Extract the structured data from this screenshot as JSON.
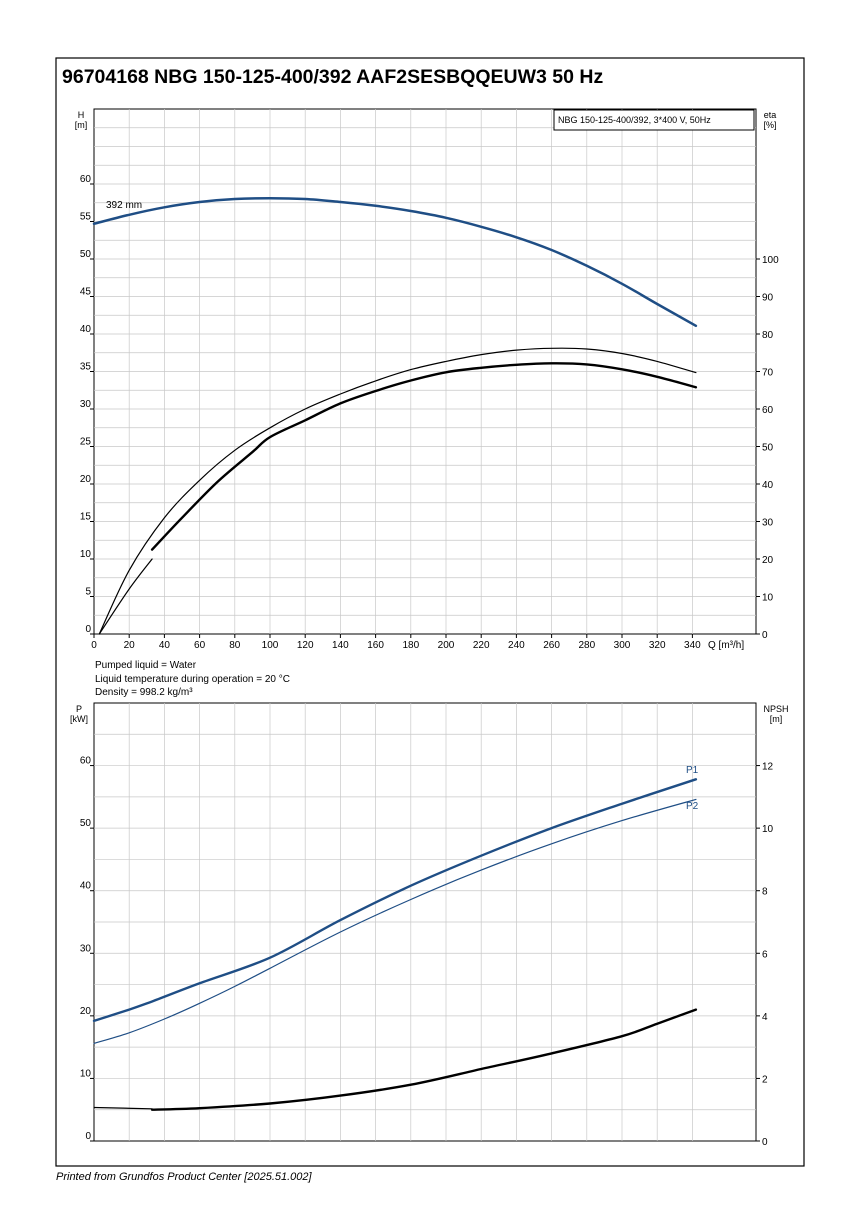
{
  "title": "96704168 NBG 150-125-400/392 AAF2SESBQQEUW3 50 Hz",
  "footer": "Printed from Grundfos Product Center [2025.51.002]",
  "colors": {
    "blue": "#1f4e85",
    "black": "#000000",
    "grid": "#c8c8c8"
  },
  "chart_data": [
    {
      "type": "line",
      "panel": "head-efficiency",
      "legend_box": "NBG 150-125-400/392, 3*400 V, 50Hz",
      "legend_position": "top-right",
      "grid": true,
      "xlabel": "Q [m³/h]",
      "x_ticks": [
        "0",
        "20",
        "40",
        "60",
        "80",
        "100",
        "120",
        "140",
        "160",
        "180",
        "200",
        "220",
        "240",
        "260",
        "280",
        "300",
        "320",
        "340"
      ],
      "xlim": [
        0,
        370
      ],
      "y_left": {
        "label_line1": "H",
        "label_line2": "[m]",
        "ticks": [
          "0",
          "5",
          "10",
          "15",
          "20",
          "25",
          "30",
          "35",
          "40",
          "45",
          "50",
          "55",
          "60"
        ],
        "lim": [
          0,
          70
        ]
      },
      "y_right": {
        "label_line1": "eta",
        "label_line2": "[%]",
        "ticks": [
          "0",
          "10",
          "20",
          "30",
          "40",
          "50",
          "60",
          "70",
          "80",
          "90",
          "100"
        ],
        "lim": [
          0,
          140
        ]
      },
      "curve_annotation": "392 mm",
      "series": [
        {
          "axis": "left",
          "color": "#1f4e85",
          "width": 2.5,
          "x": [
            0,
            20,
            40,
            60,
            80,
            100,
            120,
            140,
            160,
            180,
            200,
            220,
            240,
            260,
            280,
            300,
            320,
            342
          ],
          "y": [
            54.7,
            55.9,
            56.9,
            57.6,
            58.0,
            58.1,
            58.0,
            57.6,
            57.1,
            56.4,
            55.5,
            54.3,
            52.9,
            51.2,
            49.1,
            46.7,
            44.0,
            41.1
          ]
        },
        {
          "axis": "right",
          "color": "#000000",
          "width": 1.2,
          "x": [
            3,
            20,
            40,
            60,
            80,
            100,
            120,
            140,
            160,
            180,
            200,
            220,
            240,
            260,
            280,
            300,
            320,
            342
          ],
          "y": [
            0,
            17,
            31,
            41,
            49,
            55,
            60,
            64,
            67.5,
            70.5,
            72.7,
            74.5,
            75.7,
            76.2,
            76.0,
            74.8,
            72.7,
            69.7
          ]
        },
        {
          "axis": "right",
          "color": "#000000",
          "width": 2.4,
          "x": [
            33,
            50,
            70,
            90,
            100,
            120,
            140,
            160,
            180,
            200,
            220,
            240,
            260,
            280,
            300,
            320,
            342
          ],
          "y": [
            22.5,
            31,
            40.5,
            48.5,
            52.5,
            57,
            61.5,
            64.8,
            67.6,
            69.8,
            71,
            71.8,
            72.2,
            71.9,
            70.6,
            68.6,
            65.8
          ]
        },
        {
          "axis": "right",
          "color": "#000000",
          "width": 1.2,
          "x": [
            3,
            20,
            33
          ],
          "y": [
            0,
            12,
            20
          ]
        }
      ]
    },
    {
      "type": "line",
      "panel": "power-npsh",
      "grid": true,
      "notes": [
        "Pumped liquid = Water",
        "Liquid temperature during operation = 20 °C",
        "Density = 998.2 kg/m³"
      ],
      "y_left": {
        "label_line1": "P",
        "label_line2": "[kW]",
        "ticks": [
          "0",
          "10",
          "20",
          "30",
          "40",
          "50",
          "60"
        ],
        "lim": [
          0,
          70
        ]
      },
      "y_right": {
        "label_line1": "NPSH",
        "label_line2": "[m]",
        "ticks": [
          "0",
          "2",
          "4",
          "6",
          "8",
          "10",
          "12"
        ],
        "lim": [
          0,
          14
        ]
      },
      "xlim": [
        0,
        370
      ],
      "series": [
        {
          "name": "P1",
          "axis": "left",
          "color": "#1f4e85",
          "width": 2.4,
          "x": [
            0,
            20,
            33,
            60,
            100,
            140,
            180,
            220,
            260,
            300,
            342
          ],
          "y": [
            19.2,
            21.0,
            22.3,
            25.2,
            29.3,
            35.3,
            40.8,
            45.6,
            50.0,
            53.9,
            57.8
          ]
        },
        {
          "name": "P2",
          "axis": "left",
          "color": "#1f4e85",
          "width": 1.2,
          "x": [
            0,
            20,
            40,
            60,
            80,
            100,
            140,
            180,
            220,
            260,
            300,
            342
          ],
          "y": [
            15.6,
            17.3,
            19.5,
            22.0,
            24.7,
            27.6,
            33.4,
            38.6,
            43.3,
            47.5,
            51.2,
            54.6
          ]
        },
        {
          "axis": "right",
          "color": "#000000",
          "width": 2.4,
          "x": [
            33,
            60,
            100,
            140,
            180,
            220,
            260,
            300,
            320,
            342
          ],
          "y": [
            1.0,
            1.05,
            1.2,
            1.45,
            1.8,
            2.3,
            2.8,
            3.35,
            3.75,
            4.2
          ]
        },
        {
          "axis": "right",
          "color": "#000000",
          "width": 1.2,
          "x": [
            0,
            33
          ],
          "y": [
            1.07,
            1.03
          ]
        }
      ]
    }
  ]
}
